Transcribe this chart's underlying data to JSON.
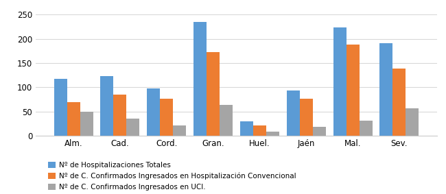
{
  "categories": [
    "Alm.",
    "Cad.",
    "Cord.",
    "Gran.",
    "Huel.",
    "Jaén",
    "Mal.",
    "Sev."
  ],
  "series": {
    "hospitalizaciones": [
      117,
      123,
      97,
      235,
      30,
      93,
      223,
      191
    ],
    "convencional": [
      69,
      85,
      76,
      173,
      21,
      76,
      188,
      138
    ],
    "uci": [
      50,
      35,
      21,
      64,
      8,
      18,
      31,
      56
    ]
  },
  "colors": {
    "hospitalizaciones": "#5B9BD5",
    "convencional": "#ED7D31",
    "uci": "#A5A5A5"
  },
  "legend": [
    "Nº de Hospitalizaciones Totales",
    "Nº de C. Confirmados Ingresados en Hospitalización Convencional",
    "Nº de C. Confirmados Ingresados en UCI."
  ],
  "ylim": [
    0,
    260
  ],
  "yticks": [
    0,
    50,
    100,
    150,
    200,
    250
  ],
  "background_color": "#FFFFFF",
  "bar_width": 0.28,
  "grid_color": "#D9D9D9"
}
